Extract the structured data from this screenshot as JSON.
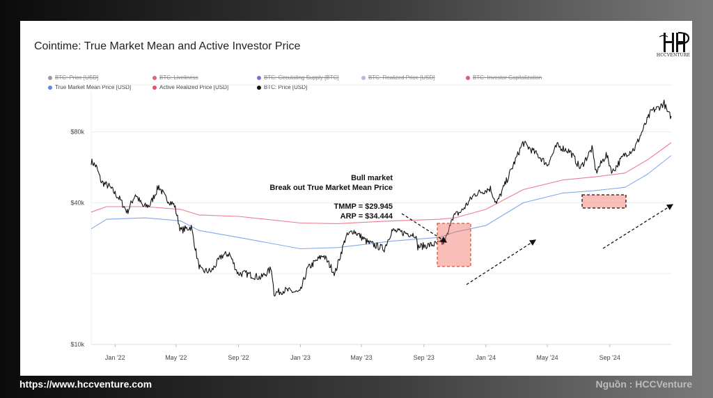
{
  "title": "Cointime: True Market Mean and Active Investor Price",
  "logo": {
    "text": "HCCVENTURE",
    "icon": "hh-monogram-logo"
  },
  "legend": [
    {
      "label": "BTC: Price [USD]",
      "color": "#9a9a9a",
      "active": false
    },
    {
      "label": "BTC: Liveliness",
      "color": "#e0607a",
      "active": false
    },
    {
      "label": "BTC: Circulating Supply [BTC]",
      "color": "#7b6fd6",
      "active": false
    },
    {
      "label": "BTC: Realized Price [USD]",
      "color": "#b9b3e8",
      "active": false
    },
    {
      "label": "BTC: Investor Capitalization",
      "color": "#e05a70",
      "active": false
    },
    {
      "label": "True Market Mean Price [USD]",
      "color": "#5b8ae6",
      "active": true
    },
    {
      "label": "Active Realized Price [USD]",
      "color": "#e8506a",
      "active": true
    },
    {
      "label": "BTC: Price [USD]",
      "color": "#111111",
      "active": true
    }
  ],
  "annotations": {
    "line1": "Bull market",
    "line2": "Break out True Market Mean Price",
    "tmmp": "TMMP = $29.945",
    "arp": "ARP = $34.444"
  },
  "footer": {
    "url": "https://www.hccventure.com",
    "source": "Nguồn : HCCVenture"
  },
  "chart_data": {
    "type": "line",
    "yscale": "log",
    "ylim": [
      10000,
      120000
    ],
    "xlim": [
      "2021-11-15",
      "2024-12-31"
    ],
    "y_ticks": [
      {
        "value": 10000,
        "label": "$10k"
      },
      {
        "value": 40000,
        "label": "$40k"
      },
      {
        "value": 80000,
        "label": "$80k"
      }
    ],
    "x_ticks": [
      {
        "date": "2022-01-01",
        "label": "Jan '22"
      },
      {
        "date": "2022-05-01",
        "label": "May '22"
      },
      {
        "date": "2022-09-01",
        "label": "Sep '22"
      },
      {
        "date": "2023-01-01",
        "label": "Jan '23"
      },
      {
        "date": "2023-05-01",
        "label": "May '23"
      },
      {
        "date": "2023-09-01",
        "label": "Sep '23"
      },
      {
        "date": "2024-01-01",
        "label": "Jan '24"
      },
      {
        "date": "2024-05-01",
        "label": "May '24"
      },
      {
        "date": "2024-09-01",
        "label": "Sep '24"
      }
    ],
    "series": [
      {
        "name": "BTC: Price [USD]",
        "color": "#111111",
        "points": [
          [
            "2021-11-15",
            60000
          ],
          [
            "2021-11-25",
            57000
          ],
          [
            "2021-12-05",
            49000
          ],
          [
            "2021-12-20",
            47000
          ],
          [
            "2022-01-10",
            41500
          ],
          [
            "2022-01-25",
            36500
          ],
          [
            "2022-02-10",
            43500
          ],
          [
            "2022-02-25",
            38500
          ],
          [
            "2022-03-10",
            39000
          ],
          [
            "2022-03-28",
            47000
          ],
          [
            "2022-04-10",
            42000
          ],
          [
            "2022-04-28",
            39000
          ],
          [
            "2022-05-10",
            30500
          ],
          [
            "2022-05-31",
            31500
          ],
          [
            "2022-06-14",
            22000
          ],
          [
            "2022-06-20",
            20500
          ],
          [
            "2022-07-10",
            20500
          ],
          [
            "2022-07-30",
            23800
          ],
          [
            "2022-08-14",
            24300
          ],
          [
            "2022-08-31",
            20000
          ],
          [
            "2022-09-15",
            20000
          ],
          [
            "2022-10-15",
            19200
          ],
          [
            "2022-11-05",
            21000
          ],
          [
            "2022-11-10",
            16500
          ],
          [
            "2022-12-01",
            17000
          ],
          [
            "2022-12-31",
            16550
          ],
          [
            "2023-01-15",
            21000
          ],
          [
            "2023-02-15",
            24000
          ],
          [
            "2023-03-10",
            20000
          ],
          [
            "2023-03-31",
            28500
          ],
          [
            "2023-04-15",
            30500
          ],
          [
            "2023-05-15",
            27000
          ],
          [
            "2023-06-15",
            25500
          ],
          [
            "2023-06-30",
            30500
          ],
          [
            "2023-07-15",
            30000
          ],
          [
            "2023-08-15",
            29300
          ],
          [
            "2023-08-20",
            26000
          ],
          [
            "2023-09-15",
            26500
          ],
          [
            "2023-10-10",
            27000
          ],
          [
            "2023-10-20",
            30000
          ],
          [
            "2023-10-25",
            34500
          ],
          [
            "2023-11-15",
            37000
          ],
          [
            "2023-12-10",
            43500
          ],
          [
            "2024-01-10",
            46000
          ],
          [
            "2024-01-22",
            39500
          ],
          [
            "2024-02-15",
            52000
          ],
          [
            "2024-03-14",
            72000
          ],
          [
            "2024-04-15",
            63000
          ],
          [
            "2024-05-01",
            58000
          ],
          [
            "2024-05-20",
            70000
          ],
          [
            "2024-06-15",
            66000
          ],
          [
            "2024-07-05",
            56000
          ],
          [
            "2024-07-28",
            68000
          ],
          [
            "2024-08-05",
            54000
          ],
          [
            "2024-08-25",
            64000
          ],
          [
            "2024-09-06",
            54000
          ],
          [
            "2024-09-30",
            64000
          ],
          [
            "2024-10-20",
            68000
          ],
          [
            "2024-11-12",
            88000
          ],
          [
            "2024-11-22",
            98000
          ],
          [
            "2024-12-05",
            101000
          ],
          [
            "2024-12-17",
            106000
          ],
          [
            "2024-12-25",
            95000
          ],
          [
            "2024-12-31",
            93500
          ]
        ]
      },
      {
        "name": "Active Realized Price [USD]",
        "color": "#e8506a",
        "points": [
          [
            "2021-11-15",
            36500
          ],
          [
            "2021-12-15",
            38500
          ],
          [
            "2022-03-01",
            38500
          ],
          [
            "2022-05-10",
            37500
          ],
          [
            "2022-06-15",
            35500
          ],
          [
            "2022-09-01",
            35000
          ],
          [
            "2023-01-01",
            32800
          ],
          [
            "2023-03-15",
            32600
          ],
          [
            "2023-07-01",
            33500
          ],
          [
            "2023-10-01",
            34000
          ],
          [
            "2023-11-01",
            34500
          ],
          [
            "2024-01-01",
            37500
          ],
          [
            "2024-03-15",
            45500
          ],
          [
            "2024-06-01",
            50000
          ],
          [
            "2024-08-01",
            51500
          ],
          [
            "2024-10-01",
            53500
          ],
          [
            "2024-11-15",
            61000
          ],
          [
            "2024-12-31",
            72000
          ]
        ]
      },
      {
        "name": "True Market Mean Price [USD]",
        "color": "#5b8ae6",
        "points": [
          [
            "2021-11-15",
            31000
          ],
          [
            "2021-12-15",
            34000
          ],
          [
            "2022-03-01",
            34500
          ],
          [
            "2022-05-10",
            33500
          ],
          [
            "2022-06-15",
            30500
          ],
          [
            "2022-09-01",
            28500
          ],
          [
            "2023-01-01",
            25500
          ],
          [
            "2023-03-15",
            25800
          ],
          [
            "2023-07-01",
            27500
          ],
          [
            "2023-10-01",
            28500
          ],
          [
            "2023-11-01",
            30000
          ],
          [
            "2024-01-01",
            32000
          ],
          [
            "2024-03-15",
            40000
          ],
          [
            "2024-06-01",
            44000
          ],
          [
            "2024-08-01",
            45000
          ],
          [
            "2024-10-01",
            46500
          ],
          [
            "2024-11-15",
            53000
          ],
          [
            "2024-12-31",
            63500
          ]
        ]
      }
    ]
  }
}
